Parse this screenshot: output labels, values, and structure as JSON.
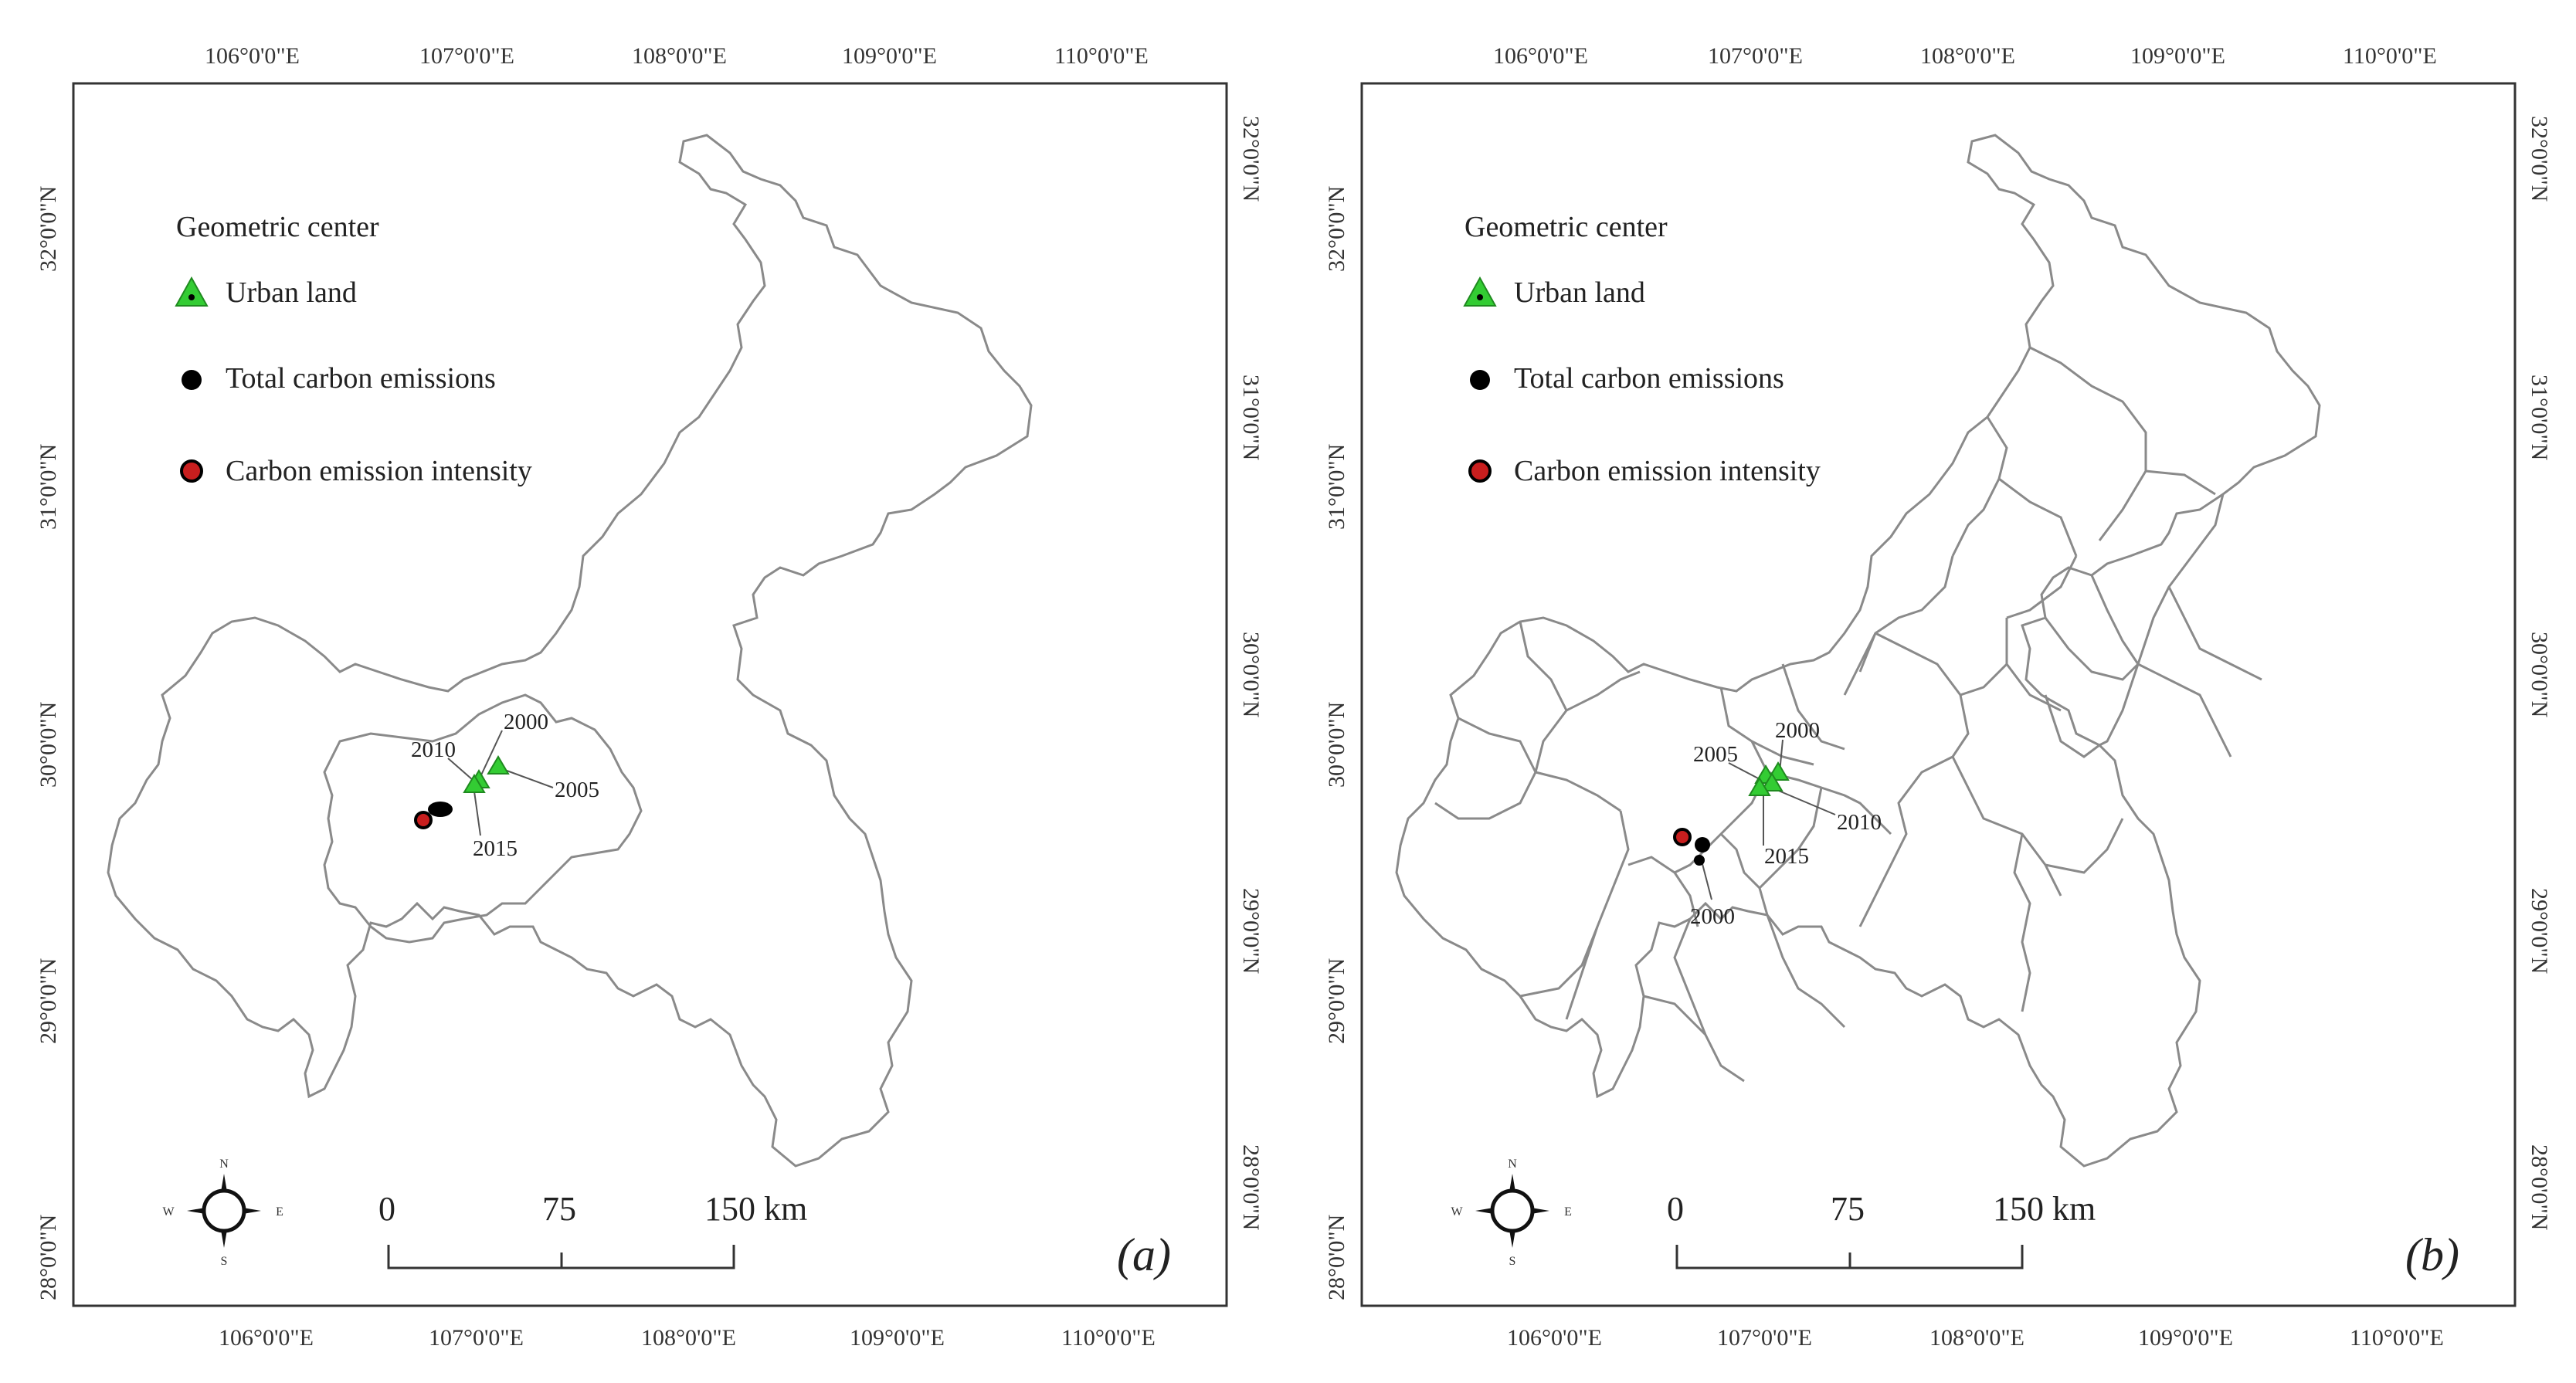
{
  "panels": [
    {
      "id": "a",
      "label": "(a)",
      "legend": {
        "title": "Geometric center",
        "items": [
          {
            "label": "Urban land",
            "symbol": "triangle",
            "color": "#33cc33"
          },
          {
            "label": "Total carbon emissions",
            "symbol": "dot",
            "color": "#000000"
          },
          {
            "label": "Carbon emission intensity",
            "symbol": "dot",
            "color": "#c81e1e"
          }
        ]
      },
      "lon_ticks": [
        "106°0'0\"E",
        "107°0'0\"E",
        "108°0'0\"E",
        "109°0'0\"E",
        "110°0'0\"E"
      ],
      "lat_ticks": [
        "32°0'0\"N",
        "31°0'0\"N",
        "30°0'0\"N",
        "29°0'0\"N",
        "28°0'0\"N"
      ],
      "scale_bar": {
        "labels": [
          "0",
          "75",
          "150 km"
        ]
      },
      "compass": {
        "n": "N",
        "s": "S",
        "e": "E",
        "w": "W"
      },
      "year_labels": [
        "2000",
        "2010",
        "2005",
        "2015"
      ]
    },
    {
      "id": "b",
      "label": "(b)",
      "legend": {
        "title": "Geometric center",
        "items": [
          {
            "label": "Urban land",
            "symbol": "triangle",
            "color": "#33cc33"
          },
          {
            "label": "Total carbon emissions",
            "symbol": "dot",
            "color": "#000000"
          },
          {
            "label": "Carbon emission intensity",
            "symbol": "dot",
            "color": "#c81e1e"
          }
        ]
      },
      "lon_ticks": [
        "106°0'0\"E",
        "107°0'0\"E",
        "108°0'0\"E",
        "109°0'0\"E",
        "110°0'0\"E"
      ],
      "lat_ticks": [
        "32°0'0\"N",
        "31°0'0\"N",
        "30°0'0\"N",
        "29°0'0\"N",
        "28°0'0\"N"
      ],
      "scale_bar": {
        "labels": [
          "0",
          "75",
          "150 km"
        ]
      },
      "compass": {
        "n": "N",
        "s": "S",
        "e": "E",
        "w": "W"
      },
      "year_labels": [
        "2000",
        "2005",
        "2010",
        "2015",
        "2000"
      ]
    }
  ]
}
